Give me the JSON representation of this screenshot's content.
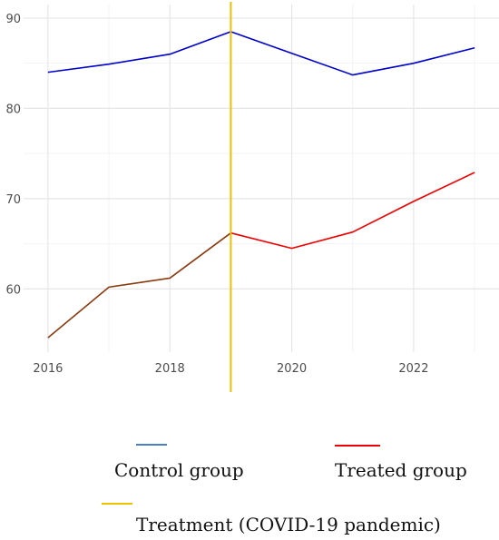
{
  "chart_data": {
    "type": "line",
    "x": [
      2016,
      2017,
      2018,
      2019,
      2020,
      2021,
      2022,
      2023
    ],
    "xticks": [
      2016,
      2018,
      2020,
      2022
    ],
    "xtick_labels": [
      "2016",
      "2018",
      "2020",
      "2022"
    ],
    "yticks": [
      60,
      70,
      80,
      90
    ],
    "ytick_labels": [
      "60",
      "70",
      "80",
      "90"
    ],
    "xlim": [
      2015.6,
      2023.4
    ],
    "ylim": [
      53.0,
      91.5
    ],
    "grid": true,
    "legend_position": "bottom",
    "series": [
      {
        "name": "Control group",
        "color": "#0000cc",
        "legend_color": "#4a7fc1",
        "values": [
          84.0,
          84.9,
          86.0,
          88.5,
          86.1,
          83.7,
          85.0,
          86.7
        ]
      },
      {
        "name": "Treated group",
        "color": "#ee0000",
        "legend_color": "#ee0000",
        "early_segment_color": "#8b3a0f",
        "values": [
          54.6,
          60.2,
          61.2,
          66.2,
          64.5,
          66.3,
          69.7,
          72.9
        ]
      }
    ],
    "vline": {
      "name": "Treatment (COVID-19 pandemic)",
      "x": 2019,
      "color": "#f0c000"
    }
  }
}
